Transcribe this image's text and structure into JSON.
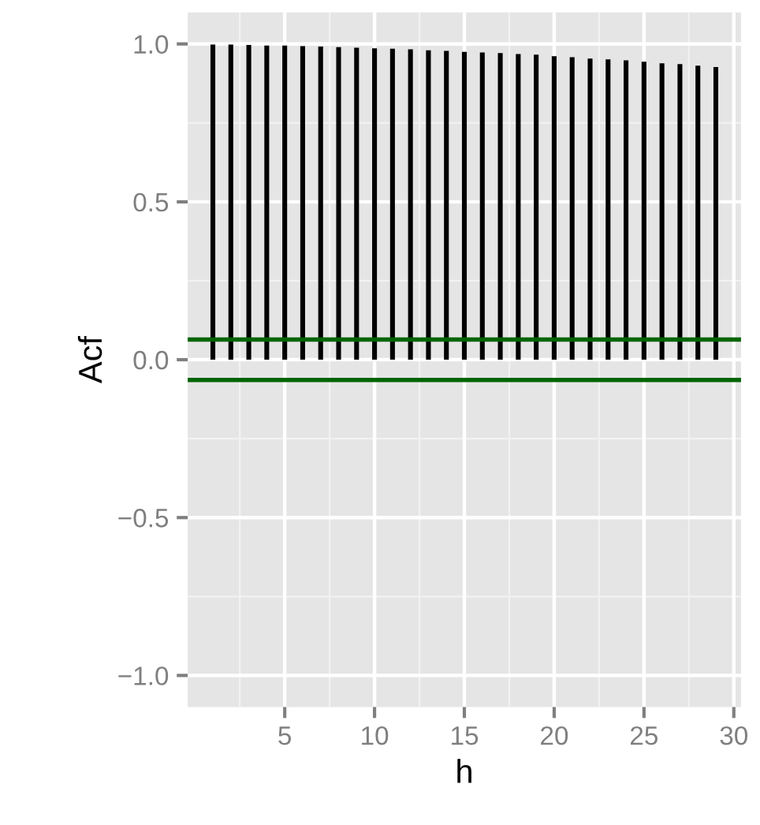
{
  "chart_data": {
    "type": "bar",
    "xlabel": "h",
    "ylabel": "Acf",
    "x": [
      1,
      2,
      3,
      4,
      5,
      6,
      7,
      8,
      9,
      10,
      11,
      12,
      13,
      14,
      15,
      16,
      17,
      18,
      19,
      20,
      21,
      22,
      23,
      24,
      25,
      26,
      27,
      28,
      29
    ],
    "series": [
      {
        "color": "#000000",
        "values": [
          0.998,
          0.998,
          0.997,
          0.995,
          0.995,
          0.993,
          0.992,
          0.99,
          0.988,
          0.986,
          0.985,
          0.983,
          0.98,
          0.978,
          0.975,
          0.973,
          0.971,
          0.968,
          0.966,
          0.961,
          0.958,
          0.954,
          0.951,
          0.948,
          0.944,
          0.939,
          0.936,
          0.931,
          0.927
        ]
      }
    ],
    "xlim": [
      -0.4,
      30.4
    ],
    "xticks": [
      5,
      10,
      15,
      20,
      25,
      30
    ],
    "ylim": [
      -1.1,
      1.1
    ],
    "yticks": [
      {
        "value": -1.0,
        "label": "−1.0"
      },
      {
        "value": -0.5,
        "label": "−0.5"
      },
      {
        "value": 0.0,
        "label": "0.0"
      },
      {
        "value": 0.5,
        "label": "0.5"
      },
      {
        "value": 1.0,
        "label": "1.0"
      }
    ],
    "ref_lines": [
      {
        "axis": "y",
        "value": 0.064,
        "color": "#006400"
      },
      {
        "axis": "y",
        "value": -0.064,
        "color": "#006400"
      }
    ],
    "grid": true
  }
}
